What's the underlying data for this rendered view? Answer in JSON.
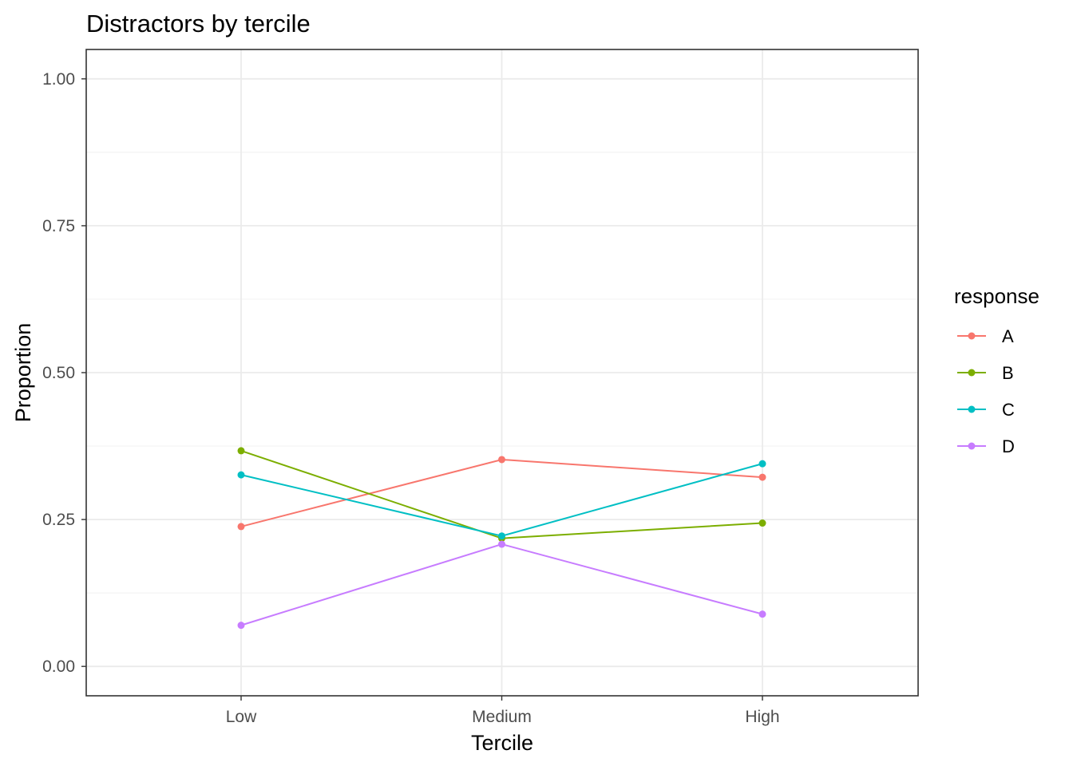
{
  "chart_data": {
    "type": "line",
    "title": "Distractors by tercile",
    "xlabel": "Tercile",
    "ylabel": "Proportion",
    "categories": [
      "Low",
      "Medium",
      "High"
    ],
    "ylim": [
      -0.05,
      1.05
    ],
    "yticks": [
      0.0,
      0.25,
      0.5,
      0.75,
      1.0
    ],
    "ytick_labels": [
      "0.00",
      "0.25",
      "0.50",
      "0.75",
      "1.00"
    ],
    "grid": true,
    "legend": {
      "title": "response",
      "position": "right"
    },
    "series": [
      {
        "name": "A",
        "color": "#F8766D",
        "values": [
          0.238,
          0.352,
          0.322
        ]
      },
      {
        "name": "B",
        "color": "#7CAE00",
        "values": [
          0.367,
          0.218,
          0.244
        ]
      },
      {
        "name": "C",
        "color": "#00BFC4",
        "values": [
          0.326,
          0.222,
          0.345
        ]
      },
      {
        "name": "D",
        "color": "#C77CFF",
        "values": [
          0.07,
          0.208,
          0.089
        ]
      }
    ]
  }
}
